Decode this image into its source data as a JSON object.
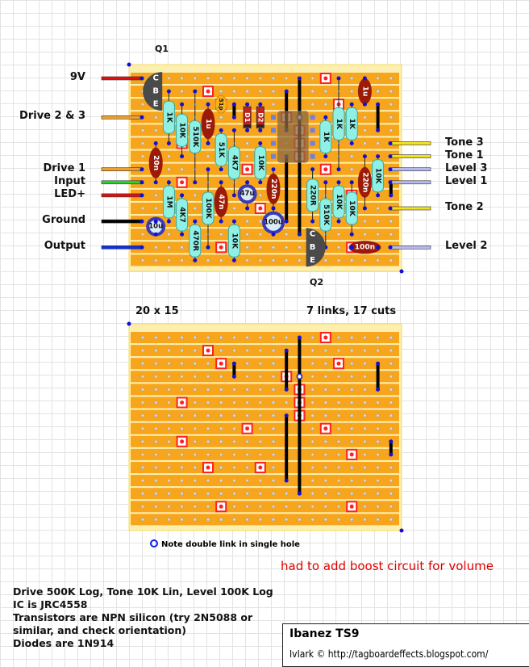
{
  "board": {
    "size_label": "20 x 15",
    "links_cuts_label": "7 links, 17 cuts",
    "q1_label": "Q1",
    "q2_label": "Q2",
    "transistor_pins": [
      "C",
      "B",
      "E"
    ],
    "colors": {
      "strip": "#f7a51c",
      "board": "#fdefb0",
      "cut": "#ff2020",
      "resistor": "#8ff0e6",
      "film_cap": "#9c1a08",
      "electrolytic": "#3a3ab8",
      "link": "#000000",
      "pad": "#1010d8"
    }
  },
  "left_wires": [
    {
      "label": "9V",
      "color": "#e01010"
    },
    {
      "label": "Drive 2 & 3",
      "color": "#f0a030"
    },
    {
      "label": "Drive 1",
      "color": "#f0a030"
    },
    {
      "label": "Input",
      "color": "#30d030"
    },
    {
      "label": "LED+",
      "color": "#e01010"
    },
    {
      "label": "Ground",
      "color": "#000000"
    },
    {
      "label": "Output",
      "color": "#1030e0"
    }
  ],
  "right_wires": [
    {
      "label": "Tone 3",
      "color": "#f0e020"
    },
    {
      "label": "Tone 1",
      "color": "#f0e020"
    },
    {
      "label": "Level 3",
      "color": "#b8b8f0"
    },
    {
      "label": "Level 1",
      "color": "#b8b8f0"
    },
    {
      "label": "Tone 2",
      "color": "#f0e020"
    },
    {
      "label": "Level 2",
      "color": "#b8b8f0"
    }
  ],
  "components": [
    "1K",
    "10K",
    "510K",
    "1u",
    "51p",
    "51K",
    "4K7",
    "D1",
    "D2",
    "10K",
    "220n",
    "20n",
    "1M",
    "4K7",
    "470R",
    "100K",
    "47n",
    "47u",
    "10u",
    "10K",
    "100u",
    "1K",
    "1K",
    "1K",
    "1u",
    "220R",
    "510K",
    "10K",
    "10K",
    "220n",
    "10K",
    "100n"
  ],
  "note_double_link": "Note double link in single hole",
  "annotation": "had to add boost circuit for volume",
  "notes": [
    "Drive 500K Log, Tone 10K Lin, Level 100K Log",
    "IC is JRC4558",
    "Transistors are NPN silicon (try 2N5088 or",
    "similar, and check orientation)",
    "Diodes are 1N914"
  ],
  "title": "Ibanez TS9",
  "credit": "IvIark © http://tagboardeffects.blogspot.com/"
}
